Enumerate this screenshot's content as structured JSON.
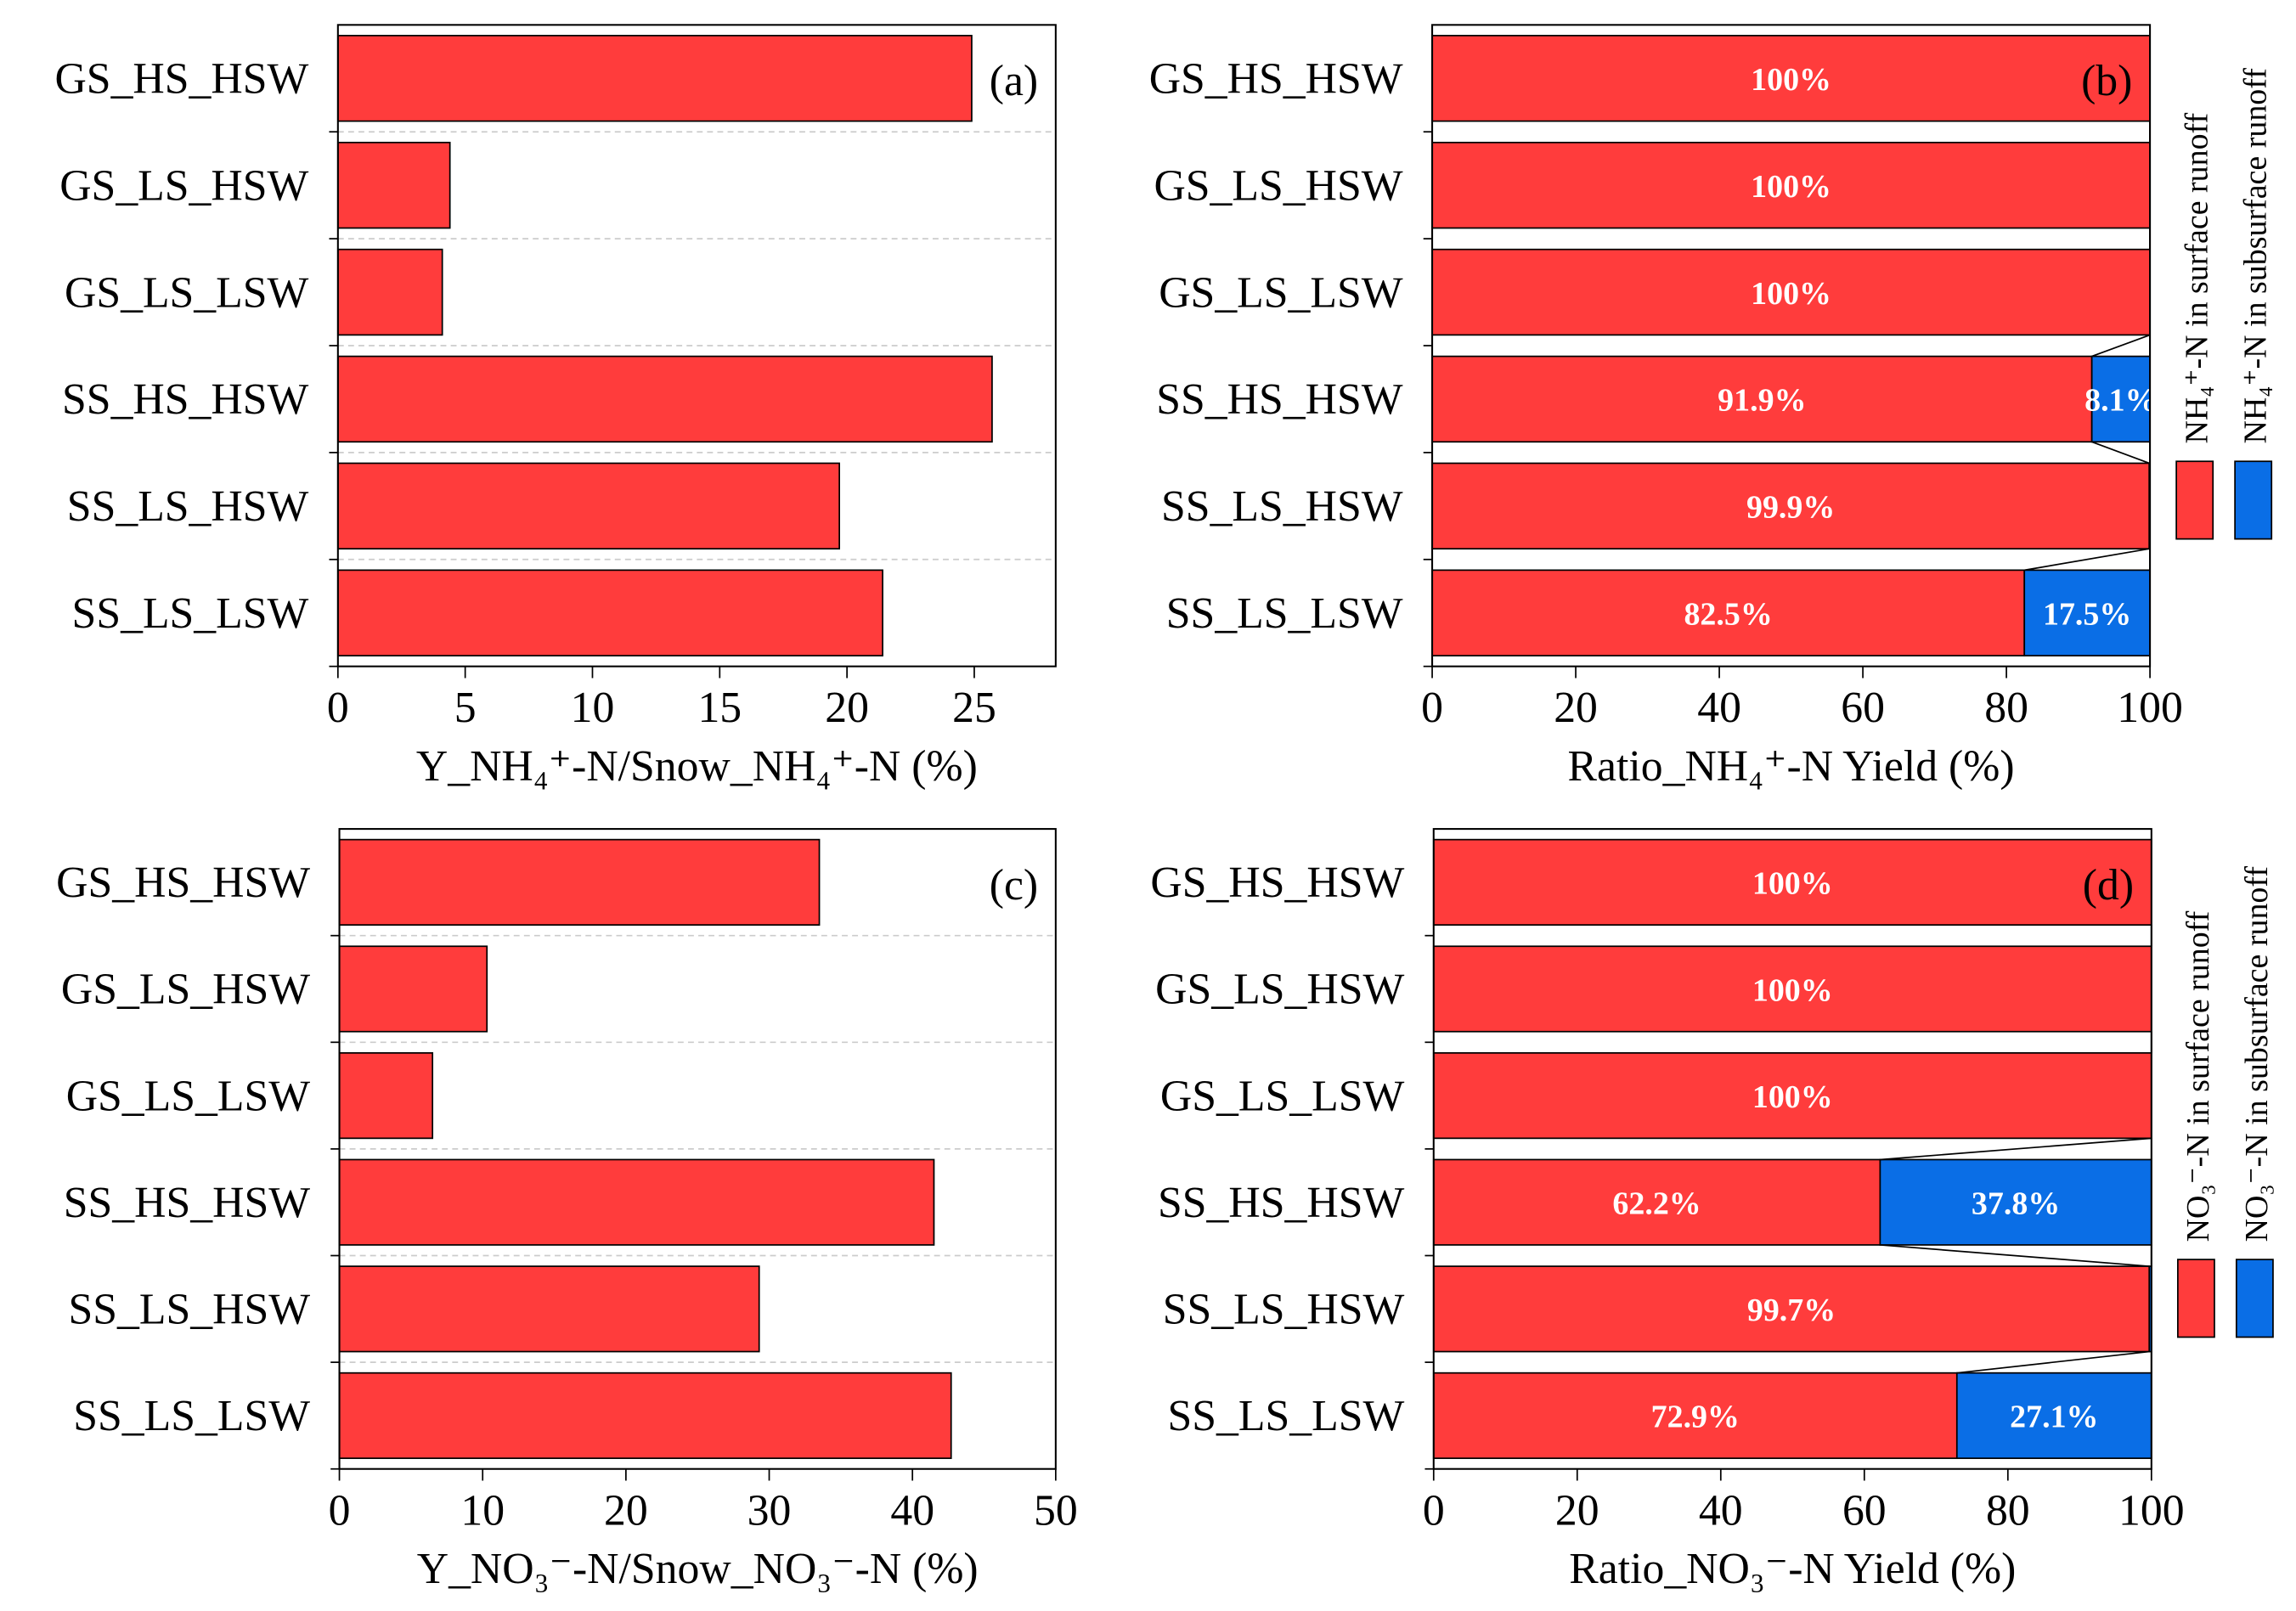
{
  "chart_data": [
    {
      "type": "bar",
      "orientation": "horizontal",
      "panel_label": "(a)",
      "categories": [
        "GS_HS_HSW",
        "GS_LS_HSW",
        "GS_LS_LSW",
        "SS_HS_HSW",
        "SS_LS_HSW",
        "SS_LS_LSW"
      ],
      "values": [
        24.9,
        4.4,
        4.1,
        25.7,
        19.7,
        21.4
      ],
      "color": "#ff3c3c",
      "xlabel": "Y_NH₄⁺-N/Snow_NH₄⁺-N (%)",
      "xlim": [
        0,
        28.2
      ],
      "xticks": [
        0,
        5,
        10,
        15,
        20,
        25
      ],
      "grid": true
    },
    {
      "type": "stacked_bar",
      "orientation": "horizontal",
      "panel_label": "(b)",
      "categories": [
        "GS_HS_HSW",
        "GS_LS_HSW",
        "GS_LS_LSW",
        "SS_HS_HSW",
        "SS_LS_HSW",
        "SS_LS_LSW"
      ],
      "series": [
        {
          "name": "NH₄⁺-N in surface runoff",
          "color": "#ff3c3c",
          "values": [
            100,
            100,
            100,
            91.9,
            99.9,
            82.5
          ],
          "value_labels": [
            "100%",
            "100%",
            "100%",
            "91.9%",
            "99.9%",
            "82.5%"
          ]
        },
        {
          "name": "NH₄⁺-N in subsurface runoff",
          "color": "#0a6ee6",
          "values": [
            0,
            0,
            0,
            8.1,
            0.1,
            17.5
          ],
          "value_labels": [
            null,
            null,
            null,
            "8.1%",
            null,
            "17.5%"
          ]
        }
      ],
      "xlabel": "Ratio_NH₄⁺-N Yield (%)",
      "xlim": [
        0,
        100
      ],
      "xticks": [
        0,
        20,
        40,
        60,
        80,
        100
      ],
      "grid": false,
      "legend": "right"
    },
    {
      "type": "bar",
      "orientation": "horizontal",
      "panel_label": "(c)",
      "categories": [
        "GS_HS_HSW",
        "GS_LS_HSW",
        "GS_LS_LSW",
        "SS_HS_HSW",
        "SS_LS_HSW",
        "SS_LS_LSW"
      ],
      "values": [
        33.5,
        10.3,
        6.5,
        41.5,
        29.3,
        42.7
      ],
      "color": "#ff3c3c",
      "xlabel": "Y_NO₃⁻-N/Snow_NO₃⁻-N (%)",
      "xlim": [
        0,
        50
      ],
      "xticks": [
        0,
        10,
        20,
        30,
        40,
        50
      ],
      "grid": true
    },
    {
      "type": "stacked_bar",
      "orientation": "horizontal",
      "panel_label": "(d)",
      "categories": [
        "GS_HS_HSW",
        "GS_LS_HSW",
        "GS_LS_LSW",
        "SS_HS_HSW",
        "SS_LS_HSW",
        "SS_LS_LSW"
      ],
      "series": [
        {
          "name": "NO₃⁻-N in surface runoff",
          "color": "#ff3c3c",
          "values": [
            100,
            100,
            100,
            62.2,
            99.7,
            72.9
          ],
          "value_labels": [
            "100%",
            "100%",
            "100%",
            "62.2%",
            "99.7%",
            "72.9%"
          ]
        },
        {
          "name": "NO₃⁻-N in subsurface runoff",
          "color": "#0a6ee6",
          "values": [
            0,
            0,
            0,
            37.8,
            0.3,
            27.1
          ],
          "value_labels": [
            null,
            null,
            null,
            "37.8%",
            null,
            "27.1%"
          ]
        }
      ],
      "xlabel": "Ratio_NO₃⁻-N Yield (%)",
      "xlim": [
        0,
        100
      ],
      "xticks": [
        0,
        20,
        40,
        60,
        80,
        100
      ],
      "grid": false,
      "legend": "right"
    }
  ]
}
